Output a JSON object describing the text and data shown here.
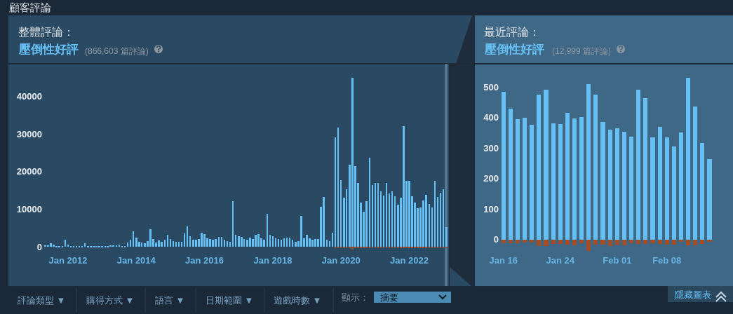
{
  "chart_data": [
    {
      "type": "bar",
      "title": "整體評論：",
      "subtitle": "壓倒性好評",
      "annotations": [
        "顧客評論",
        "(866,603 篇評論)"
      ],
      "x": [
        "2011-05",
        "2011-06",
        "2011-07",
        "2011-08",
        "2011-09",
        "2011-10",
        "2011-11",
        "2011-12",
        "2012-01",
        "2012-02",
        "2012-03",
        "2012-04",
        "2012-05",
        "2012-06",
        "2012-07",
        "2012-08",
        "2012-09",
        "2012-10",
        "2012-11",
        "2012-12",
        "2013-01",
        "2013-02",
        "2013-03",
        "2013-04",
        "2013-05",
        "2013-06",
        "2013-07",
        "2013-08",
        "2013-09",
        "2013-10",
        "2013-11",
        "2013-12",
        "2014-01",
        "2014-02",
        "2014-03",
        "2014-04",
        "2014-05",
        "2014-06",
        "2014-07",
        "2014-08",
        "2014-09",
        "2014-10",
        "2014-11",
        "2014-12",
        "2015-01",
        "2015-02",
        "2015-03",
        "2015-04",
        "2015-05",
        "2015-06",
        "2015-07",
        "2015-08",
        "2015-09",
        "2015-10",
        "2015-11",
        "2015-12",
        "2016-01",
        "2016-02",
        "2016-03",
        "2016-04",
        "2016-05",
        "2016-06",
        "2016-07",
        "2016-08",
        "2016-09",
        "2016-10",
        "2016-11",
        "2016-12",
        "2017-01",
        "2017-02",
        "2017-03",
        "2017-04",
        "2017-05",
        "2017-06",
        "2017-07",
        "2017-08",
        "2017-09",
        "2017-10",
        "2017-11",
        "2017-12",
        "2018-01",
        "2018-02",
        "2018-03",
        "2018-04",
        "2018-05",
        "2018-06",
        "2018-07",
        "2018-08",
        "2018-09",
        "2018-10",
        "2018-11",
        "2018-12",
        "2019-01",
        "2019-02",
        "2019-03",
        "2019-04",
        "2019-05",
        "2019-06",
        "2019-07",
        "2019-08",
        "2019-09",
        "2019-10",
        "2019-11",
        "2019-12",
        "2020-01",
        "2020-02",
        "2020-03",
        "2020-04",
        "2020-05",
        "2020-06",
        "2020-07",
        "2020-08",
        "2020-09",
        "2020-10",
        "2020-11",
        "2020-12",
        "2021-01",
        "2021-02",
        "2021-03",
        "2021-04",
        "2021-05",
        "2021-06",
        "2021-07",
        "2021-08",
        "2021-09",
        "2021-10",
        "2021-11",
        "2021-12",
        "2022-01",
        "2022-02",
        "2022-03",
        "2022-04",
        "2022-05",
        "2022-06",
        "2022-07",
        "2022-08",
        "2022-09",
        "2022-10",
        "2022-11",
        "2022-12",
        "2023-01",
        "2023-02"
      ],
      "series": [
        {
          "color": "#66c0f4",
          "values": [
            400,
            400,
            1000,
            500,
            300,
            300,
            300,
            1800,
            500,
            300,
            300,
            300,
            300,
            300,
            900,
            300,
            300,
            300,
            300,
            300,
            300,
            300,
            300,
            400,
            400,
            400,
            600,
            300,
            300,
            1200,
            1900,
            4200,
            2400,
            1400,
            1200,
            1000,
            1600,
            4600,
            2000,
            1200,
            1700,
            1300,
            1800,
            3200,
            2000,
            1500,
            1300,
            1300,
            1300,
            3600,
            5400,
            2800,
            1900,
            1900,
            2100,
            3700,
            3300,
            2300,
            2100,
            1900,
            2100,
            2700,
            2700,
            1900,
            1500,
            1300,
            12100,
            3200,
            2900,
            2600,
            2100,
            1900,
            2500,
            2100,
            3100,
            3300,
            2200,
            1900,
            8700,
            3100,
            2900,
            2200,
            2000,
            1800,
            2200,
            2400,
            2500,
            1900,
            1300,
            1600,
            8200,
            2300,
            3200,
            2200,
            1900,
            2000,
            2000,
            10700,
            13300,
            1900,
            1500,
            3700,
            29100,
            31600,
            17700,
            13000,
            15300,
            21800,
            44800,
            21500,
            16900,
            11700,
            9400,
            12100,
            23700,
            16400,
            16900,
            16900,
            14700,
            13600,
            17000,
            14200,
            14700,
            13500,
            11100,
            13100,
            32000,
            17500,
            17500,
            13400,
            11700,
            10200,
            10500,
            12300,
            13800,
            11400,
            10500,
            17500,
            13300,
            14300,
            15300,
            5200
          ]
        },
        {
          "color": "#a34c25",
          "values": [
            null,
            null,
            null,
            null,
            null,
            null,
            null,
            null,
            null,
            null,
            null,
            null,
            null,
            null,
            null,
            null,
            null,
            null,
            null,
            null,
            null,
            null,
            null,
            null,
            null,
            null,
            null,
            null,
            null,
            null,
            null,
            null,
            null,
            null,
            null,
            null,
            null,
            null,
            null,
            null,
            null,
            null,
            null,
            null,
            null,
            null,
            null,
            null,
            null,
            null,
            null,
            null,
            null,
            null,
            null,
            null,
            null,
            null,
            null,
            null,
            null,
            null,
            null,
            null,
            null,
            null,
            null,
            null,
            null,
            null,
            null,
            null,
            null,
            null,
            null,
            null,
            null,
            null,
            null,
            null,
            null,
            null,
            null,
            null,
            null,
            null,
            null,
            null,
            null,
            null,
            null,
            null,
            null,
            null,
            null,
            null,
            null,
            null,
            null,
            null,
            null,
            null,
            -300,
            -300,
            -300,
            -200,
            -200,
            -300,
            -700,
            -300,
            -200,
            -200,
            -200,
            -200,
            -300,
            -200,
            -200,
            -200,
            -200,
            -200,
            -200,
            -200,
            -200,
            -200,
            -200,
            -200,
            -400,
            -200,
            -300,
            -200,
            -200,
            -200,
            -200,
            -300,
            -300,
            -200,
            -200,
            -300,
            -200,
            -200,
            -300,
            -200
          ]
        }
      ],
      "stacked": true,
      "xlim": [
        "2010-04-03",
        "2023-03-01"
      ],
      "xticks": [
        {
          "value": "2012-01",
          "label": "Jan 2012"
        },
        {
          "value": "2014-01",
          "label": "Jan 2014"
        },
        {
          "value": "2016-01",
          "label": "Jan 2016"
        },
        {
          "value": "2018-01",
          "label": "Jan 2018"
        },
        {
          "value": "2020-01",
          "label": "Jan 2020"
        },
        {
          "value": "2022-01",
          "label": "Jan 2022"
        }
      ],
      "ylim": [
        -10400,
        48600
      ],
      "yticks": [
        0,
        10000,
        20000,
        30000,
        40000
      ],
      "bands": [
        {
          "axis": "x",
          "from": "2023-01-16",
          "to": "2023-02-14",
          "color": "#577891"
        }
      ]
    },
    {
      "type": "bar",
      "title": "最近評論：",
      "subtitle": "壓倒性好評",
      "annotations": [
        "(12,999 篇評論)"
      ],
      "categories": [
        "Jan 16",
        null,
        null,
        null,
        null,
        null,
        null,
        null,
        "Jan 24",
        null,
        null,
        null,
        null,
        null,
        null,
        null,
        "Feb 01",
        null,
        null,
        null,
        null,
        null,
        null,
        "Feb 08",
        null,
        null,
        null,
        null,
        null,
        null
      ],
      "series": [
        {
          "color": "#66c0f4",
          "values": [
            485,
            429,
            394,
            400,
            376,
            474,
            492,
            381,
            379,
            416,
            396,
            401,
            510,
            475,
            386,
            360,
            365,
            354,
            337,
            491,
            463,
            335,
            370,
            334,
            304,
            350,
            529,
            436,
            317,
            264
          ]
        },
        {
          "color": "#a34c25",
          "values": [
            -12,
            -12,
            -12,
            -9,
            -9,
            -21,
            -21,
            -15,
            -14,
            -17,
            -18,
            -12,
            -37,
            -17,
            -17,
            -21,
            -17,
            -18,
            -11,
            -14,
            -14,
            -11,
            -15,
            -17,
            -17,
            -8,
            -18,
            -18,
            -14,
            -8
          ]
        }
      ],
      "stacked": true,
      "ylim": [
        -152,
        576
      ],
      "yticks": [
        0,
        100,
        200,
        300,
        400,
        500
      ]
    },
    {
      "type": "other",
      "annotations": [
        "評論類型 ▼",
        "購得方式 ▼",
        "語言 ▼",
        "日期範圍 ▼",
        "遊戲時數 ▼",
        "顯示：",
        "摘要",
        "隱藏圖表"
      ]
    }
  ]
}
